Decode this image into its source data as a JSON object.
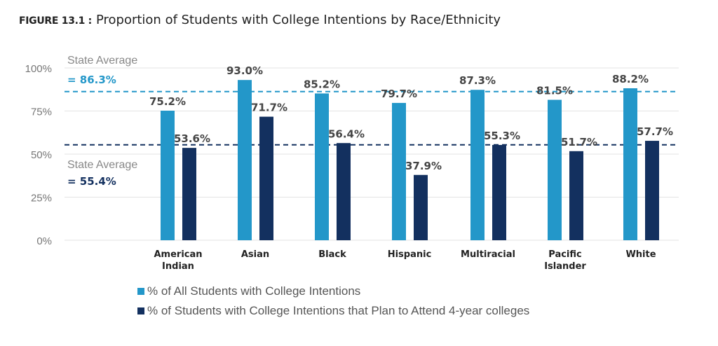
{
  "chart_data": {
    "type": "bar",
    "title_prefix": "FIGURE 13.1 :",
    "title": "Proportion of Students with College Intentions by Race/Ethnicity",
    "categories": [
      "American Indian",
      "Asian",
      "Black",
      "Hispanic",
      "Multiracial",
      "Pacific Islander",
      "White"
    ],
    "category_lines": [
      [
        "American",
        "Indian"
      ],
      [
        "Asian"
      ],
      [
        "Black"
      ],
      [
        "Hispanic"
      ],
      [
        "Multiracial"
      ],
      [
        "Pacific",
        "Islander"
      ],
      [
        "White"
      ]
    ],
    "series": [
      {
        "name": "% of All Students with College Intentions",
        "color": "#2397c9",
        "values": [
          75.2,
          93.0,
          85.2,
          79.7,
          87.3,
          81.5,
          88.2
        ]
      },
      {
        "name": "% of Students with College Intentions that Plan to Attend 4-year colleges",
        "color": "#13305f",
        "values": [
          53.6,
          71.7,
          56.4,
          37.9,
          55.3,
          51.7,
          57.7
        ]
      }
    ],
    "reference_lines": [
      {
        "label": "State Average",
        "value_label": "= 86.3%",
        "value": 86.3,
        "color": "#2397c9",
        "style": "dashed"
      },
      {
        "label": "State Average",
        "value_label": "= 55.4%",
        "value": 55.4,
        "color": "#13305f",
        "style": "dashed"
      }
    ],
    "yticks": [
      "0%",
      "25%",
      "50%",
      "75%",
      "100%"
    ],
    "ytick_values": [
      0,
      25,
      50,
      75,
      100
    ],
    "ylim": [
      0,
      100
    ],
    "grid": true,
    "legend_position": "bottom-left"
  }
}
